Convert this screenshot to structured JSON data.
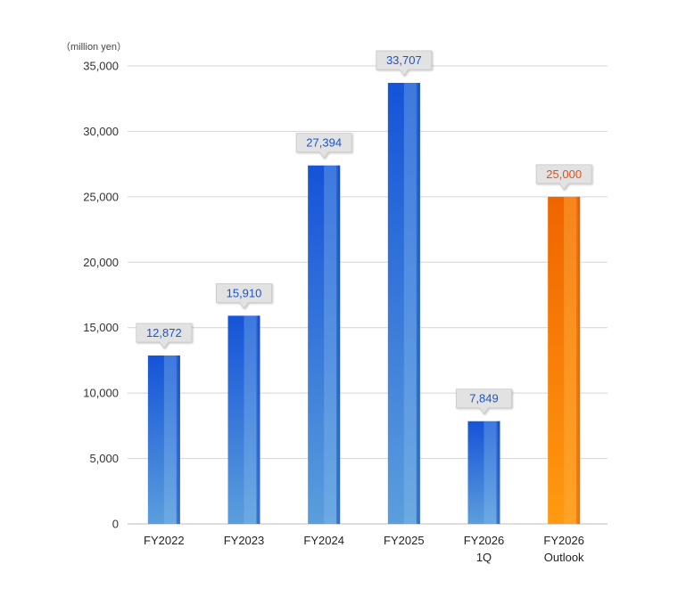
{
  "chart_data": {
    "type": "bar",
    "unit_label": "（million yen）",
    "ylim": [
      0,
      35000
    ],
    "yticks": [
      "0",
      "5,000",
      "10,000",
      "15,000",
      "20,000",
      "25,000",
      "30,000",
      "35,000"
    ],
    "ytick_values": [
      0,
      5000,
      10000,
      15000,
      20000,
      25000,
      30000,
      35000
    ],
    "grid": true,
    "categories": [
      [
        "FY2022"
      ],
      [
        "FY2023"
      ],
      [
        "FY2024"
      ],
      [
        "FY2025"
      ],
      [
        "FY2026",
        "1Q"
      ],
      [
        "FY2026",
        "Outlook"
      ]
    ],
    "values": [
      12872,
      15910,
      27394,
      33707,
      7849,
      25000
    ],
    "value_labels": [
      "12,872",
      "15,910",
      "27,394",
      "33,707",
      "7,849",
      "25,000"
    ],
    "kinds": [
      "actual",
      "actual",
      "actual",
      "actual",
      "actual",
      "outlook"
    ],
    "colors": {
      "actual_dark": "#1a56d6",
      "actual_light": "#5aa0dc",
      "outlook_dark": "#f26a00",
      "outlook_light": "#ff9a1a",
      "actual_label": "#1a55c8",
      "outlook_label": "#e0501a",
      "label_box": "#e2e2e2",
      "grid": "#d4d4d4"
    }
  }
}
